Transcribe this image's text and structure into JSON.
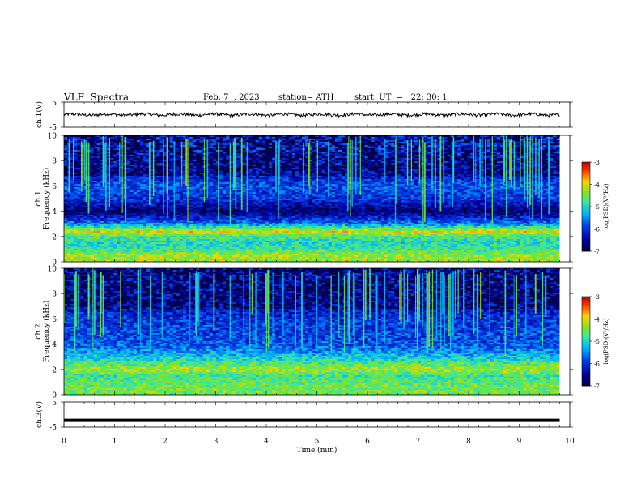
{
  "header": {
    "title": "VLF  Spectra",
    "date": "Feb. 7  , 2023",
    "station": "station= ATH",
    "start_ut": "start  UT  =   22: 30: 1"
  },
  "chart_data": [
    {
      "type": "line",
      "panel": "ch1-waveform",
      "ylabel": "ch.1(V)",
      "ylim": [
        -5,
        5
      ],
      "yticks": [
        "5",
        "-5"
      ],
      "xlim": [
        0,
        10
      ],
      "description_values": {
        "center": 0,
        "amplitude_approx": 0.6,
        "end_time": 9.8
      }
    },
    {
      "type": "heatmap",
      "panel": "ch1-spectrogram",
      "ylabel": "ch.1\nFrequency (kHz)",
      "ylim": [
        0,
        10
      ],
      "yticks": [
        "0",
        "2",
        "4",
        "6",
        "8",
        "10"
      ],
      "xlim": [
        0,
        10
      ],
      "colorbar": {
        "label": "log(PSD)(V²/Hz)",
        "range": [
          -7,
          -3
        ],
        "ticks": [
          "-3",
          "-4",
          "-5",
          "-6",
          "-7"
        ]
      },
      "bands_khz": [
        {
          "f": 0.5,
          "level": -4.3
        },
        {
          "f": 1.0,
          "level": -4.8
        },
        {
          "f": 1.5,
          "level": -5.0
        },
        {
          "f": 2.0,
          "level": -4.7
        },
        {
          "f": 2.4,
          "level": -4.0
        },
        {
          "f": 3.0,
          "level": -5.6
        },
        {
          "f": 4.0,
          "level": -6.7
        },
        {
          "f": 5.0,
          "level": -6.0
        },
        {
          "f": 6.0,
          "level": -5.8
        },
        {
          "f": 7.0,
          "level": -6.3
        },
        {
          "f": 9.0,
          "level": -6.0
        }
      ]
    },
    {
      "type": "heatmap",
      "panel": "ch2-spectrogram",
      "ylabel": "ch.2\nFrequency (kHz)",
      "ylim": [
        0,
        10
      ],
      "yticks": [
        "0",
        "2",
        "4",
        "6",
        "8",
        "10"
      ],
      "xlim": [
        0,
        10
      ],
      "colorbar": {
        "label": "log(PSD)(V²/Hz)",
        "range": [
          -7,
          -3
        ],
        "ticks": [
          "-3",
          "-4",
          "-5",
          "-6",
          "-7"
        ]
      },
      "bands_khz": [
        {
          "f": 0.5,
          "level": -4.5
        },
        {
          "f": 1.0,
          "level": -4.6
        },
        {
          "f": 1.5,
          "level": -4.8
        },
        {
          "f": 2.0,
          "level": -4.2
        },
        {
          "f": 3.0,
          "level": -5.2
        },
        {
          "f": 4.0,
          "level": -5.8
        },
        {
          "f": 5.0,
          "level": -5.9
        },
        {
          "f": 6.0,
          "level": -6.0
        },
        {
          "f": 7.0,
          "level": -6.3
        },
        {
          "f": 9.0,
          "level": -6.2
        }
      ]
    },
    {
      "type": "line",
      "panel": "ch3-waveform",
      "ylabel": "ch.3(V)",
      "ylim": [
        -5,
        5
      ],
      "yticks": [
        "5",
        "-5"
      ],
      "xlim": [
        0,
        10
      ],
      "description_values": {
        "constant_value": -2.3,
        "end_time": 9.8
      }
    }
  ],
  "x_axis": {
    "label": "Time  (min)",
    "ticks": [
      "0",
      "1",
      "2",
      "3",
      "4",
      "5",
      "6",
      "7",
      "8",
      "9",
      "10"
    ]
  },
  "colors": {
    "background": "#ffffff",
    "axis": "#000000",
    "dark_blue": "#000066"
  }
}
